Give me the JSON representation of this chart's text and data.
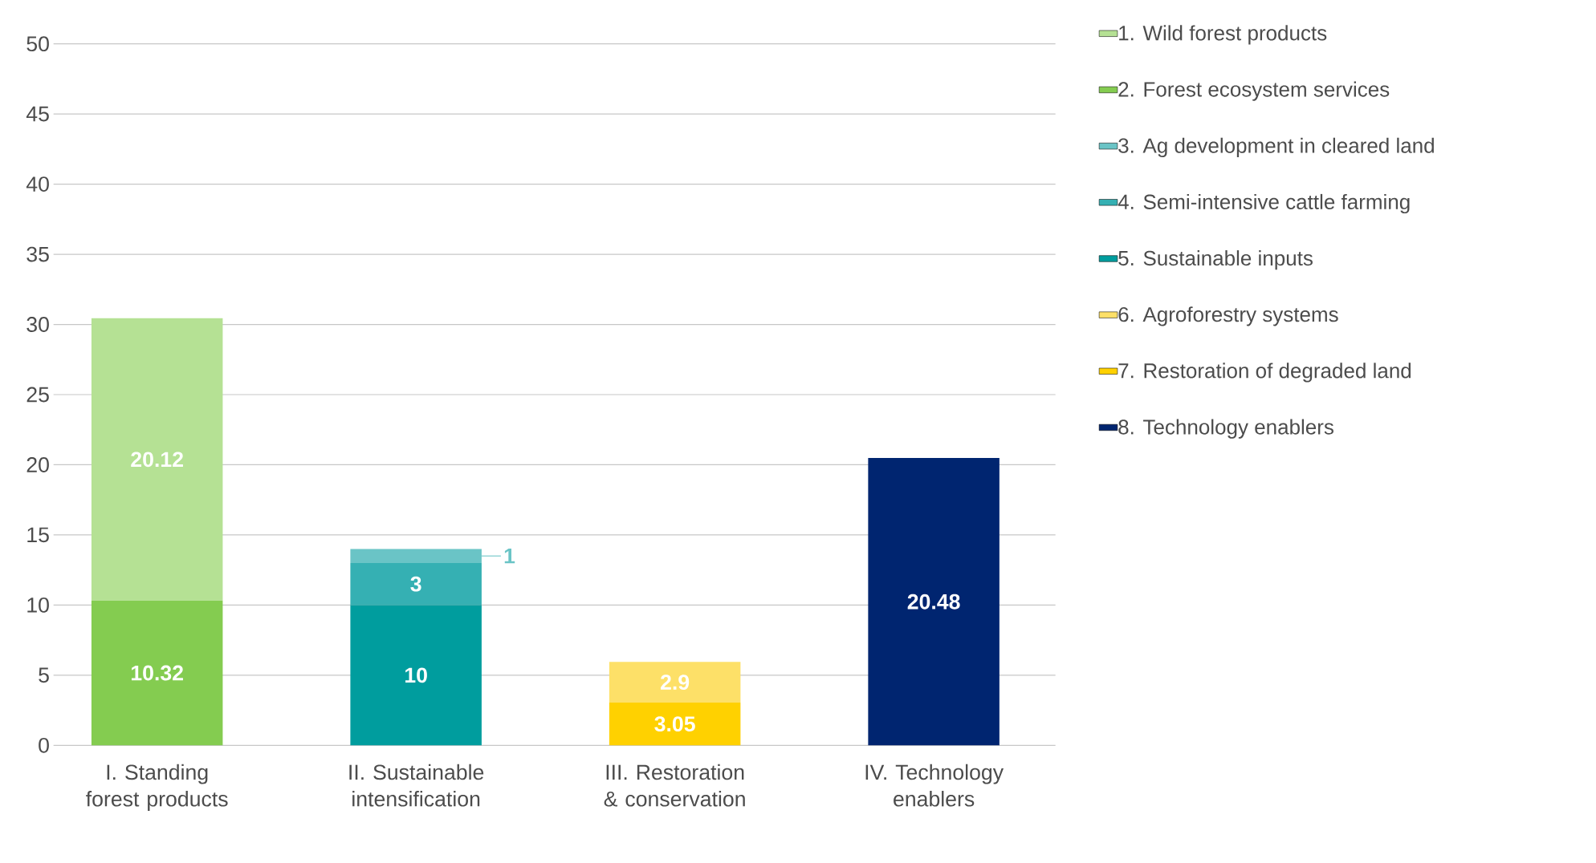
{
  "chart_data": {
    "type": "bar",
    "stacked": true,
    "categories": [
      "I. Standing forest products",
      "II. Sustainable intensification",
      "III. Restoration & conservation",
      "IV. Technology enablers"
    ],
    "series": [
      {
        "name": "2. Forest ecosystem services",
        "color": "#84cc50",
        "values": [
          10.32,
          null,
          null,
          null
        ]
      },
      {
        "name": "1. Wild forest products",
        "color": "#b5e194",
        "values": [
          20.12,
          null,
          null,
          null
        ]
      },
      {
        "name": "5. Sustainable inputs",
        "color": "#009d9e",
        "values": [
          null,
          10,
          null,
          null
        ]
      },
      {
        "name": "4. Semi-intensive cattle farming",
        "color": "#35b0b3",
        "values": [
          null,
          3,
          null,
          null
        ]
      },
      {
        "name": "3. Ag development in cleared land",
        "color": "#6ac4c6",
        "values": [
          null,
          1,
          null,
          null
        ]
      },
      {
        "name": "7. Restoration of degraded land",
        "color": "#ffd100",
        "values": [
          null,
          null,
          3.05,
          null
        ]
      },
      {
        "name": "6. Agroforestry systems",
        "color": "#fde068",
        "values": [
          null,
          null,
          2.9,
          null
        ]
      },
      {
        "name": "8. Technology enablers",
        "color": "#002570",
        "values": [
          null,
          null,
          null,
          20.48
        ]
      }
    ],
    "ylim": [
      0,
      50
    ],
    "yticks": [
      0,
      5,
      10,
      15,
      20,
      25,
      30,
      35,
      40,
      45,
      50
    ],
    "grid": "y",
    "legend": "right",
    "data_labels": true
  }
}
